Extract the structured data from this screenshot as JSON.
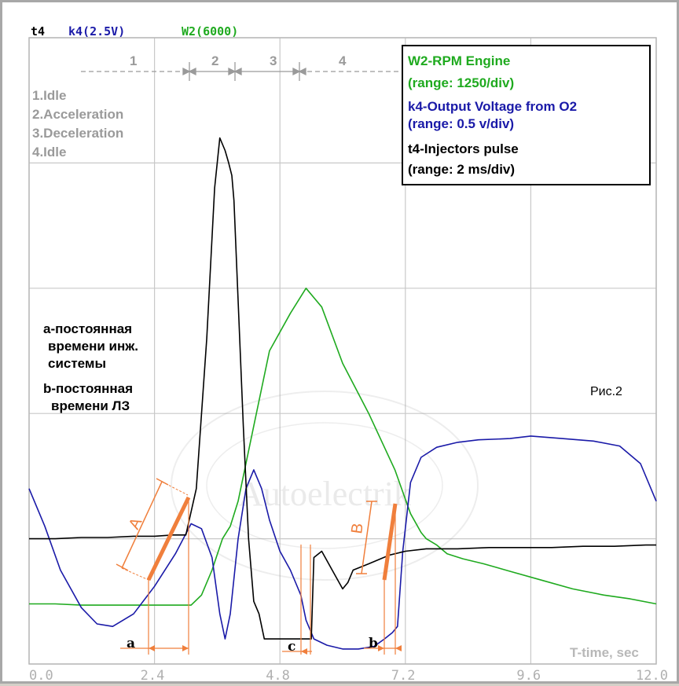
{
  "header": {
    "t4": "t4",
    "k4": "k4(2.5V)",
    "w2": "W2(6000)"
  },
  "colors": {
    "w2": "#1faa1f",
    "k4": "#1a1aa8",
    "t4": "#000000",
    "accent": "#f07f3c",
    "grid": "#c8c8c8"
  },
  "phases": {
    "numbers": [
      "1",
      "2",
      "3",
      "4"
    ],
    "labels": [
      "1.Idle",
      "2.Acceleration",
      "3.Deceleration",
      "4.Idle"
    ]
  },
  "legend": {
    "w2_title": "W2-RPM Engine",
    "w2_range": "(range: 1250/div)",
    "k4_title": "k4-Output Voltage from O2",
    "k4_range": "(range: 0.5 v/div)",
    "t4_title": "t4-Injectors pulse",
    "t4_range": "(range: 2 ms/div)"
  },
  "notes": {
    "a_line1": "a-постоянная",
    "a_line2": "времени инж.",
    "a_line3": "системы",
    "b_line1": "b-постоянная",
    "b_line2": "времени ЛЗ"
  },
  "figure_label": "Рис.2",
  "markers": {
    "a": "a",
    "b": "b",
    "c": "c",
    "A": "A",
    "B": "B"
  },
  "watermark": "Autoelectrik",
  "chart_data": {
    "type": "line",
    "xlabel": "T-time, sec",
    "xlim": [
      0,
      12
    ],
    "xticks": [
      "0.0",
      "2.4",
      "4.8",
      "7.2",
      "9.6",
      "12.0"
    ],
    "grid": true,
    "series": [
      {
        "name": "W2-RPM Engine",
        "color": "#1faa1f",
        "points": [
          [
            0,
            0.48
          ],
          [
            0.5,
            0.48
          ],
          [
            1,
            0.47
          ],
          [
            1.5,
            0.47
          ],
          [
            2,
            0.47
          ],
          [
            2.5,
            0.47
          ],
          [
            2.9,
            0.47
          ],
          [
            3.1,
            0.47
          ],
          [
            3.3,
            0.55
          ],
          [
            3.5,
            0.75
          ],
          [
            3.7,
            1.0
          ],
          [
            3.85,
            1.1
          ],
          [
            4.0,
            1.3
          ],
          [
            4.3,
            1.9
          ],
          [
            4.6,
            2.5
          ],
          [
            5.0,
            2.8
          ],
          [
            5.3,
            3.0
          ],
          [
            5.6,
            2.85
          ],
          [
            6.0,
            2.4
          ],
          [
            6.5,
            2.0
          ],
          [
            7.0,
            1.55
          ],
          [
            7.3,
            1.2
          ],
          [
            7.5,
            1.05
          ],
          [
            7.6,
            1.0
          ],
          [
            7.8,
            0.95
          ],
          [
            8.0,
            0.88
          ],
          [
            8.3,
            0.84
          ],
          [
            8.7,
            0.8
          ],
          [
            9.2,
            0.74
          ],
          [
            9.8,
            0.67
          ],
          [
            10.4,
            0.6
          ],
          [
            11,
            0.55
          ],
          [
            11.5,
            0.52
          ],
          [
            12,
            0.48
          ]
        ]
      },
      {
        "name": "k4-Output Voltage from O2",
        "color": "#1a1aa8",
        "points": [
          [
            0,
            1.4
          ],
          [
            0.3,
            1.1
          ],
          [
            0.6,
            0.75
          ],
          [
            1.0,
            0.45
          ],
          [
            1.3,
            0.32
          ],
          [
            1.6,
            0.3
          ],
          [
            2.0,
            0.4
          ],
          [
            2.4,
            0.62
          ],
          [
            2.8,
            0.88
          ],
          [
            3.1,
            1.12
          ],
          [
            3.3,
            1.08
          ],
          [
            3.5,
            0.85
          ],
          [
            3.65,
            0.4
          ],
          [
            3.75,
            0.2
          ],
          [
            3.85,
            0.4
          ],
          [
            4.0,
            1.0
          ],
          [
            4.15,
            1.4
          ],
          [
            4.3,
            1.55
          ],
          [
            4.45,
            1.4
          ],
          [
            4.6,
            1.15
          ],
          [
            4.8,
            0.9
          ],
          [
            5.0,
            0.75
          ],
          [
            5.2,
            0.55
          ],
          [
            5.3,
            0.35
          ],
          [
            5.45,
            0.2
          ],
          [
            5.7,
            0.15
          ],
          [
            6.0,
            0.12
          ],
          [
            6.3,
            0.12
          ],
          [
            6.6,
            0.14
          ],
          [
            6.8,
            0.2
          ],
          [
            6.95,
            0.25
          ],
          [
            7.05,
            0.3
          ],
          [
            7.15,
            0.9
          ],
          [
            7.3,
            1.45
          ],
          [
            7.5,
            1.65
          ],
          [
            7.8,
            1.73
          ],
          [
            8.2,
            1.77
          ],
          [
            8.6,
            1.79
          ],
          [
            9.2,
            1.8
          ],
          [
            9.6,
            1.82
          ],
          [
            10.2,
            1.8
          ],
          [
            10.8,
            1.78
          ],
          [
            11.3,
            1.74
          ],
          [
            11.7,
            1.6
          ],
          [
            12,
            1.3
          ]
        ]
      },
      {
        "name": "t4-Injectors pulse",
        "color": "#000000",
        "points": [
          [
            0,
            1.0
          ],
          [
            0.5,
            1.0
          ],
          [
            1,
            1.01
          ],
          [
            1.5,
            1.01
          ],
          [
            2,
            1.02
          ],
          [
            2.4,
            1.02
          ],
          [
            2.75,
            1.03
          ],
          [
            3.0,
            1.03
          ],
          [
            3.2,
            1.4
          ],
          [
            3.4,
            2.6
          ],
          [
            3.55,
            3.8
          ],
          [
            3.65,
            4.2
          ],
          [
            3.75,
            4.1
          ],
          [
            3.82,
            4.0
          ],
          [
            3.88,
            3.9
          ],
          [
            3.92,
            3.7
          ],
          [
            4.0,
            2.9
          ],
          [
            4.1,
            1.9
          ],
          [
            4.2,
            1.0
          ],
          [
            4.3,
            0.5
          ],
          [
            4.4,
            0.4
          ],
          [
            4.5,
            0.2
          ],
          [
            4.6,
            0.2
          ],
          [
            5.0,
            0.2
          ],
          [
            5.4,
            0.2
          ],
          [
            5.45,
            0.85
          ],
          [
            5.6,
            0.9
          ],
          [
            5.8,
            0.75
          ],
          [
            6.0,
            0.6
          ],
          [
            6.1,
            0.65
          ],
          [
            6.2,
            0.75
          ],
          [
            6.5,
            0.8
          ],
          [
            6.9,
            0.87
          ],
          [
            7.2,
            0.9
          ],
          [
            7.6,
            0.92
          ],
          [
            8.2,
            0.92
          ],
          [
            8.8,
            0.93
          ],
          [
            9.4,
            0.93
          ],
          [
            10.0,
            0.93
          ],
          [
            10.6,
            0.94
          ],
          [
            11.2,
            0.94
          ],
          [
            11.8,
            0.95
          ],
          [
            12,
            0.95
          ]
        ]
      }
    ]
  }
}
